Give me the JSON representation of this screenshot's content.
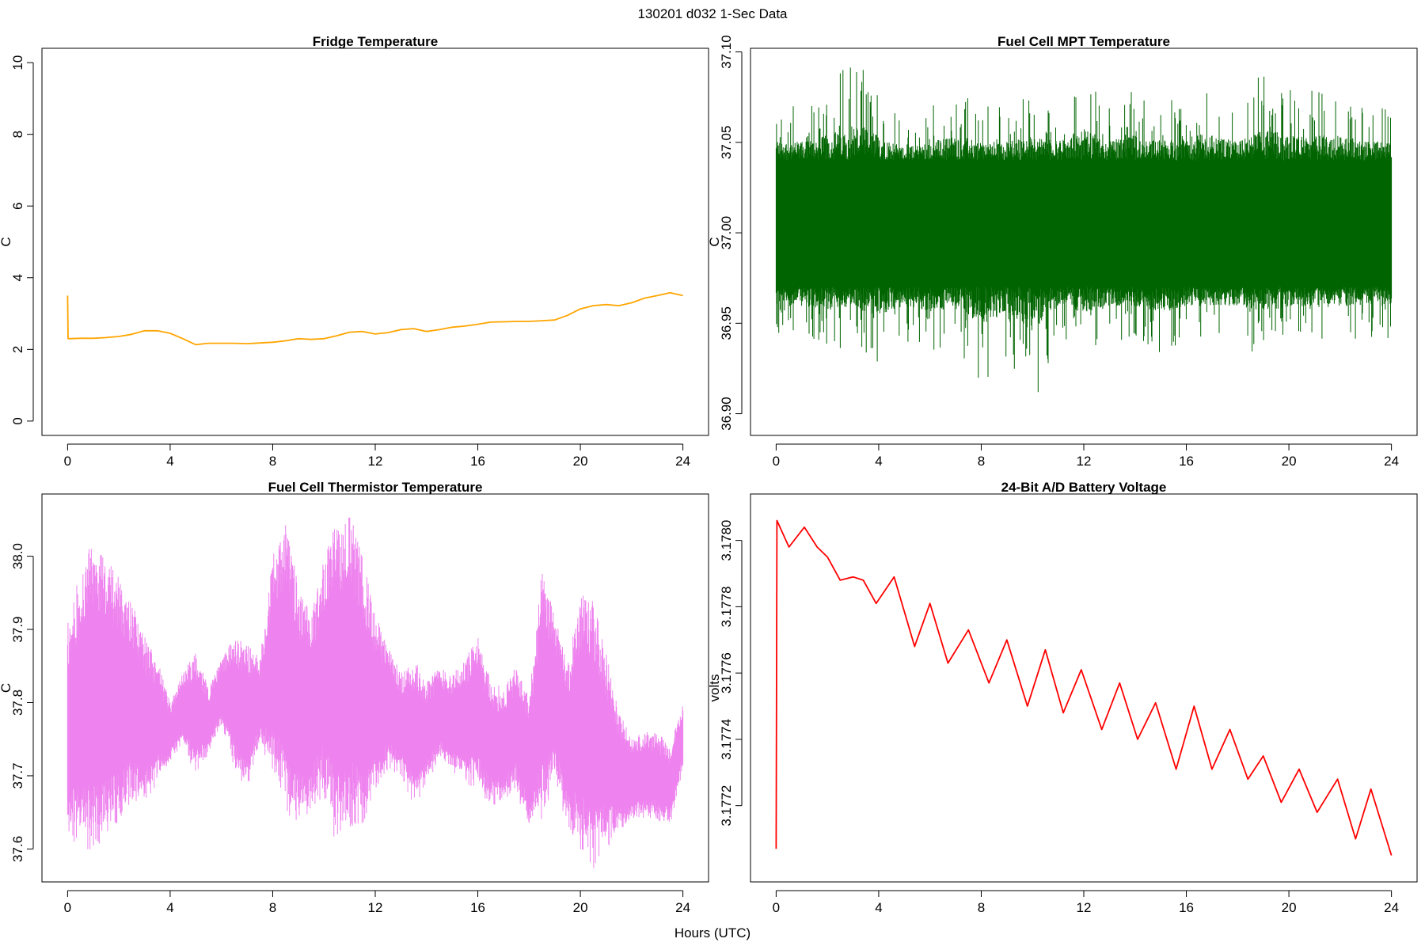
{
  "figure": {
    "suptitle": "130201   d032   1-Sec Data",
    "shared_xlabel": "Hours (UTC)"
  },
  "chart_data": [
    {
      "type": "line",
      "title": "Fridge Temperature",
      "xlabel": "",
      "ylabel": "C",
      "xlim": [
        -1,
        25
      ],
      "ylim": [
        -0.4,
        10.4
      ],
      "xticks": [
        0,
        4,
        8,
        12,
        16,
        20,
        24
      ],
      "yticks": [
        0,
        2,
        4,
        6,
        8,
        10
      ],
      "ytick_labels": [
        "0",
        "2",
        "4",
        "6",
        "8",
        "10"
      ],
      "grid": false,
      "color": "#FFA500",
      "series": [
        {
          "x": [
            0,
            0.02,
            0.05,
            0.5,
            1,
            1.5,
            2,
            2.5,
            3,
            3.5,
            4,
            4.5,
            5,
            5.5,
            6,
            6.5,
            7,
            7.5,
            8,
            8.5,
            9,
            9.5,
            10,
            10.5,
            11,
            11.5,
            12,
            12.5,
            13,
            13.5,
            14,
            14.5,
            15,
            15.5,
            16,
            16.5,
            17,
            17.5,
            18,
            18.5,
            19,
            19.5,
            20,
            20.5,
            21,
            21.5,
            22,
            22.5,
            23,
            23.5,
            24
          ],
          "y": [
            3.5,
            2.3,
            2.3,
            2.31,
            2.31,
            2.33,
            2.36,
            2.42,
            2.52,
            2.52,
            2.45,
            2.3,
            2.13,
            2.17,
            2.17,
            2.17,
            2.16,
            2.18,
            2.2,
            2.24,
            2.3,
            2.28,
            2.3,
            2.38,
            2.48,
            2.5,
            2.43,
            2.47,
            2.55,
            2.58,
            2.5,
            2.55,
            2.62,
            2.65,
            2.7,
            2.76,
            2.77,
            2.78,
            2.78,
            2.8,
            2.82,
            2.95,
            3.13,
            3.22,
            3.25,
            3.22,
            3.3,
            3.43,
            3.5,
            3.58,
            3.5
          ]
        }
      ]
    },
    {
      "type": "line",
      "title": "Fuel Cell MPT Temperature",
      "xlabel": "",
      "ylabel": "C",
      "xlim": [
        -1,
        25
      ],
      "ylim": [
        36.888,
        37.102
      ],
      "xticks": [
        0,
        4,
        8,
        12,
        16,
        20,
        24
      ],
      "yticks": [
        36.9,
        36.95,
        37.0,
        37.05,
        37.1
      ],
      "ytick_labels": [
        "36.90",
        "36.95",
        "37.00",
        "37.05",
        "37.10"
      ],
      "grid": false,
      "color": "#006400",
      "series": [
        {
          "x": [
            0,
            1,
            2,
            3,
            4,
            5,
            6,
            7,
            8,
            9,
            10,
            11,
            12,
            13,
            14,
            15,
            16,
            17,
            18,
            19,
            20,
            21,
            22,
            23,
            24
          ],
          "y_min": [
            36.94,
            36.94,
            36.93,
            36.94,
            36.92,
            36.94,
            36.93,
            36.94,
            36.91,
            36.93,
            36.9,
            36.94,
            36.93,
            36.94,
            36.94,
            36.93,
            36.94,
            36.94,
            36.94,
            36.93,
            36.94,
            36.94,
            36.94,
            36.94,
            36.94
          ],
          "y_max": [
            37.07,
            37.07,
            37.08,
            37.1,
            37.08,
            37.06,
            37.07,
            37.08,
            37.07,
            37.07,
            37.08,
            37.07,
            37.09,
            37.07,
            37.08,
            37.07,
            37.08,
            37.08,
            37.07,
            37.09,
            37.08,
            37.08,
            37.08,
            37.07,
            37.07
          ],
          "y_band_low": [
            36.97,
            36.97,
            36.97,
            36.97,
            36.97,
            36.97,
            36.97,
            36.97,
            36.97,
            36.97,
            36.97,
            36.97,
            36.97,
            36.97,
            36.97,
            36.97,
            36.97,
            36.97,
            36.97,
            36.97,
            36.97,
            36.97,
            36.97,
            36.97,
            36.97
          ],
          "y_band_high": [
            37.04,
            37.04,
            37.04,
            37.04,
            37.04,
            37.04,
            37.04,
            37.04,
            37.04,
            37.04,
            37.04,
            37.04,
            37.04,
            37.04,
            37.04,
            37.04,
            37.04,
            37.04,
            37.04,
            37.04,
            37.04,
            37.04,
            37.04,
            37.04,
            37.04
          ]
        }
      ]
    },
    {
      "type": "line",
      "title": "Fuel Cell Thermistor Temperature",
      "xlabel": "",
      "ylabel": "C",
      "xlim": [
        -1,
        25
      ],
      "ylim": [
        37.555,
        38.085
      ],
      "xticks": [
        0,
        4,
        8,
        12,
        16,
        20,
        24
      ],
      "yticks": [
        37.6,
        37.7,
        37.8,
        37.9,
        38.0
      ],
      "ytick_labels": [
        "37.6",
        "37.7",
        "37.8",
        "37.9",
        "38.0"
      ],
      "grid": false,
      "color": "#EE82EE",
      "series": [
        {
          "x": [
            0,
            0.5,
            1,
            1.5,
            2,
            2.5,
            3,
            3.5,
            4,
            4.5,
            5,
            5.5,
            6,
            6.5,
            7,
            7.5,
            8,
            8.5,
            9,
            9.5,
            10,
            10.5,
            11,
            11.5,
            12,
            12.5,
            13,
            13.5,
            14,
            14.5,
            15,
            15.5,
            16,
            16.5,
            17,
            17.5,
            18,
            18.5,
            19,
            19.5,
            20,
            20.5,
            21,
            21.5,
            22,
            22.5,
            23,
            23.5,
            24
          ],
          "y_min": [
            37.62,
            37.6,
            37.59,
            37.61,
            37.63,
            37.66,
            37.66,
            37.69,
            37.72,
            37.74,
            37.7,
            37.73,
            37.77,
            37.71,
            37.68,
            37.74,
            37.7,
            37.65,
            37.63,
            37.65,
            37.67,
            37.6,
            37.63,
            37.62,
            37.67,
            37.71,
            37.7,
            37.65,
            37.69,
            37.72,
            37.7,
            37.69,
            37.68,
            37.66,
            37.66,
            37.68,
            37.62,
            37.64,
            37.69,
            37.63,
            37.6,
            37.57,
            37.6,
            37.62,
            37.64,
            37.64,
            37.64,
            37.63,
            37.71
          ],
          "y_max": [
            37.91,
            37.98,
            38.03,
            38.0,
            37.97,
            37.94,
            37.89,
            37.86,
            37.8,
            37.84,
            37.87,
            37.82,
            37.86,
            37.89,
            37.88,
            37.86,
            38.0,
            38.05,
            37.96,
            37.92,
            38.0,
            38.05,
            38.06,
            38.0,
            37.92,
            37.88,
            37.84,
            37.86,
            37.83,
            37.85,
            37.84,
            37.86,
            37.89,
            37.83,
            37.82,
            37.85,
            37.81,
            37.98,
            37.92,
            37.85,
            37.95,
            37.94,
            37.87,
            37.79,
            37.75,
            37.76,
            37.76,
            37.74,
            37.8
          ]
        }
      ]
    },
    {
      "type": "line",
      "title": "24-Bit A/D Battery Voltage",
      "xlabel": "",
      "ylabel": "volts",
      "xlim": [
        -1,
        25
      ],
      "ylim": [
        3.17697,
        3.17814
      ],
      "xticks": [
        0,
        4,
        8,
        12,
        16,
        20,
        24
      ],
      "yticks": [
        3.1772,
        3.1774,
        3.1776,
        3.1778,
        3.178
      ],
      "ytick_labels": [
        "3.1772",
        "3.1774",
        "3.1776",
        "3.1778",
        "3.1780"
      ],
      "grid": false,
      "color": "#FF0000",
      "series": [
        {
          "x": [
            0,
            0.03,
            0.5,
            1.1,
            1.6,
            2.0,
            2.5,
            3.0,
            3.4,
            3.9,
            4.6,
            5.4,
            6.0,
            6.7,
            7.5,
            8.3,
            9.0,
            9.8,
            10.5,
            11.2,
            11.9,
            12.7,
            13.4,
            14.1,
            14.8,
            15.6,
            16.3,
            17.0,
            17.7,
            18.4,
            19.0,
            19.7,
            20.4,
            21.1,
            21.9,
            22.6,
            23.2,
            24.0
          ],
          "y": [
            3.17707,
            3.17806,
            3.17798,
            3.17804,
            3.17798,
            3.17795,
            3.17788,
            3.17789,
            3.17788,
            3.17781,
            3.17789,
            3.17768,
            3.17781,
            3.17763,
            3.17773,
            3.17757,
            3.1777,
            3.1775,
            3.17767,
            3.17748,
            3.17761,
            3.17743,
            3.17757,
            3.1774,
            3.17751,
            3.17731,
            3.1775,
            3.17731,
            3.17743,
            3.17728,
            3.17735,
            3.17721,
            3.17731,
            3.17718,
            3.17728,
            3.1771,
            3.17725,
            3.17705
          ]
        }
      ]
    }
  ]
}
